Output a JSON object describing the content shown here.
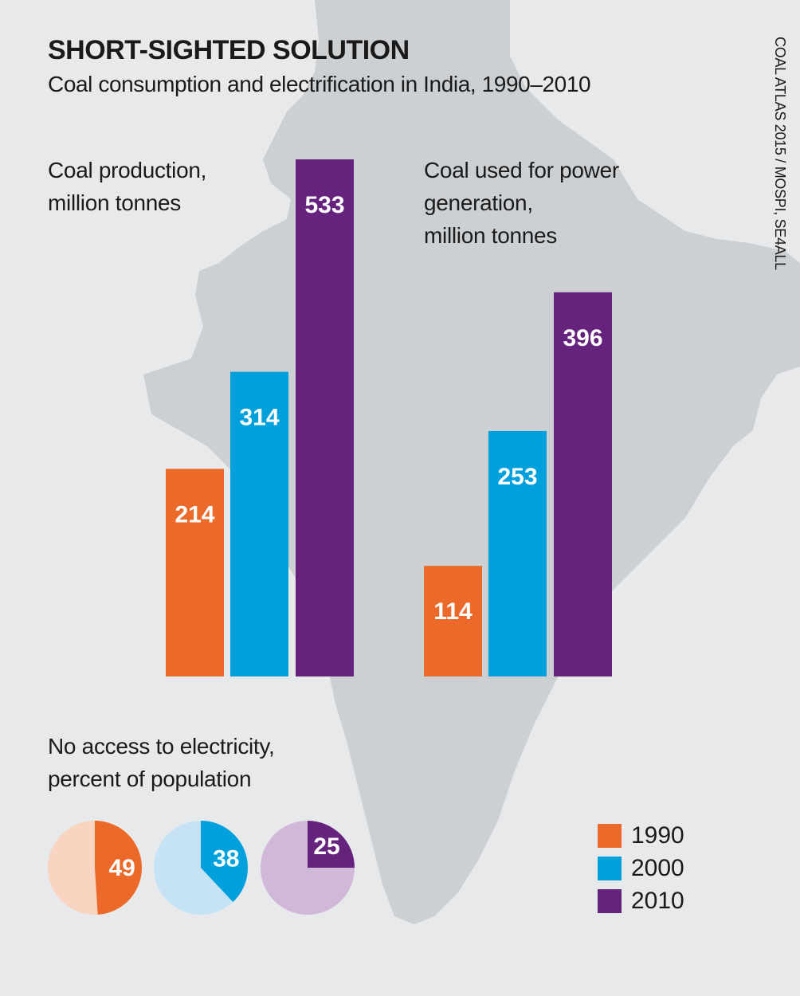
{
  "header": {
    "title": "SHORT-SIGHTED SOLUTION",
    "subtitle": "Coal consumption and electrification in India, 1990–2010",
    "source": "COAL ATLAS 2015 / MOSPI, SE4ALL"
  },
  "colors": {
    "1990": "#ec6a29",
    "2000": "#00a0dc",
    "2010": "#65237d",
    "1990_light": "#f9d4c0",
    "2000_light": "#c5e3f4",
    "2010_light": "#d0b8d9",
    "map": "#cdd0d3",
    "background": "#e8e9eb"
  },
  "legend": [
    {
      "label": "1990",
      "color": "#ec6a29"
    },
    {
      "label": "2000",
      "color": "#00a0dc"
    },
    {
      "label": "2010",
      "color": "#65237d"
    }
  ],
  "chart_data": [
    {
      "type": "bar",
      "title": "Coal production,\nmillion tonnes",
      "title_lines": [
        "Coal production,",
        "million tonnes"
      ],
      "categories": [
        "1990",
        "2000",
        "2010"
      ],
      "values": [
        214,
        314,
        533
      ],
      "data_labels": [
        "214",
        "314",
        "533"
      ]
    },
    {
      "type": "bar",
      "title": "Coal used for power\ngeneration,\nmillion tonnes",
      "title_lines": [
        "Coal used for power",
        "generation,",
        "million tonnes"
      ],
      "categories": [
        "1990",
        "2000",
        "2010"
      ],
      "values": [
        114,
        253,
        396
      ],
      "data_labels": [
        "114",
        "253",
        "396"
      ]
    },
    {
      "type": "pie",
      "title": "No access to electricity,\npercent of population",
      "title_lines": [
        "No access to electricity,",
        "percent of population"
      ],
      "categories": [
        "1990",
        "2000",
        "2010"
      ],
      "values": [
        49,
        38,
        25
      ],
      "data_labels": [
        "49",
        "38",
        "25"
      ]
    }
  ]
}
